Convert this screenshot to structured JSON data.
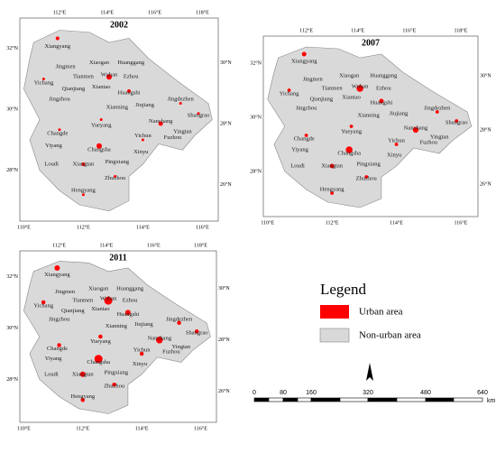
{
  "panels": [
    {
      "title": "2002"
    },
    {
      "title": "2007"
    },
    {
      "title": "2011"
    }
  ],
  "top_lon_labels": [
    "112°E",
    "114°E",
    "116°E",
    "118°E"
  ],
  "bottom_lon_labels": [
    "110°E",
    "112°E",
    "114°E",
    "116°E"
  ],
  "left_lat_labels": [
    "32°N",
    "30°N",
    "28°N"
  ],
  "right_lat_labels": [
    "30°N",
    "28°N",
    "26°N"
  ],
  "cities": [
    "Xiangyang",
    "Jingmen",
    "Xiaogan",
    "Huanggang",
    "Yichang",
    "Tianmen",
    "Wuhan",
    "Ezhou",
    "Qianjiang",
    "Xiantao",
    "Huangshi",
    "Jingzhou",
    "Jingdezhen",
    "Xianning",
    "Jiujiang",
    "Shangrao",
    "Changde",
    "Yueyang",
    "Nanchang",
    "Yingtan",
    "Yichun",
    "Fuzhou",
    "Yiyang",
    "Changsha",
    "Xinyu",
    "Loudi",
    "Xiangtan",
    "Pingxiang",
    "Zhuzhou",
    "Hengyang"
  ],
  "legend": {
    "title": "Legend",
    "items": [
      "Urban area",
      "Non-urban area"
    ]
  },
  "scale_bar": {
    "labels": [
      "0",
      "80",
      "160",
      "320",
      "480",
      "640"
    ],
    "unit": "km"
  }
}
